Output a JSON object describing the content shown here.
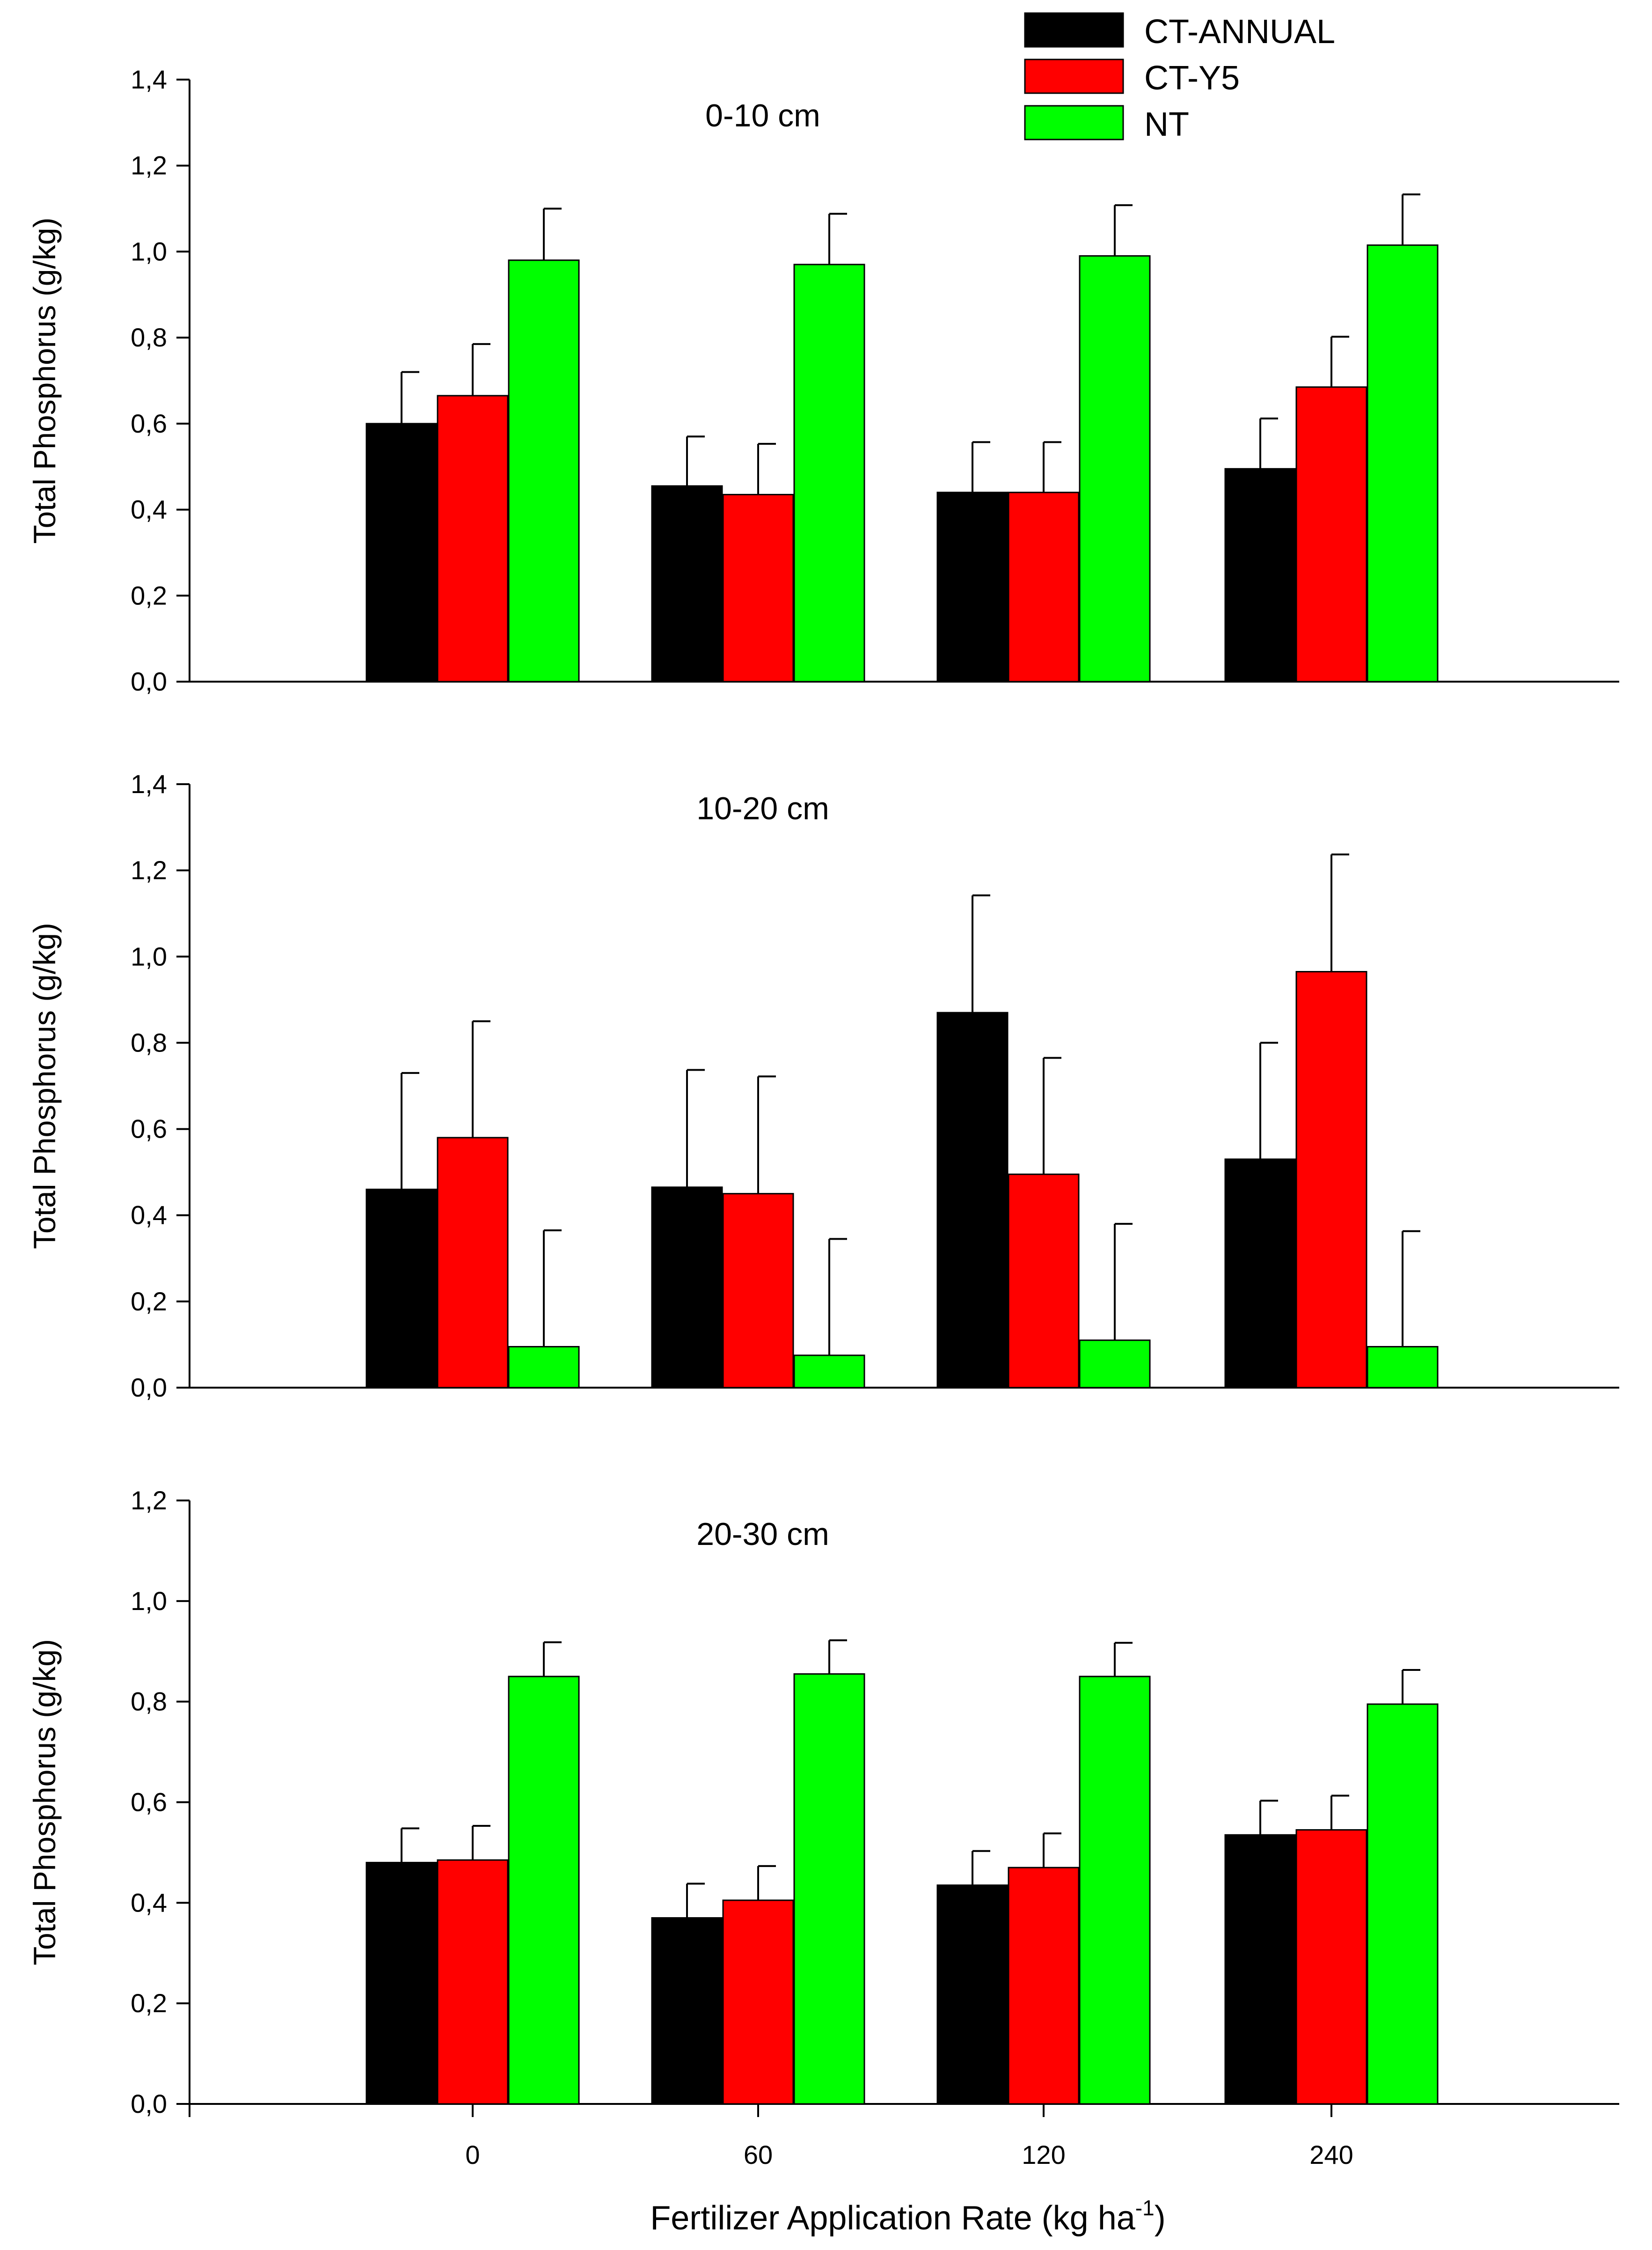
{
  "legend": [
    {
      "name": "CT-ANNUAL",
      "color": "#000000"
    },
    {
      "name": "CT-Y5",
      "color": "#ff0000"
    },
    {
      "name": "NT",
      "color": "#00ff00"
    }
  ],
  "xlabel": {
    "main": "Fertilizer Application Rate (kg ha",
    "sup": "-1",
    "close": ")"
  },
  "chart_data": [
    {
      "type": "bar",
      "title": "0-10 cm",
      "ylabel": "Total Phosphorus (g/kg)",
      "xlabel": "",
      "categories": [
        "0",
        "60",
        "120",
        "240"
      ],
      "ylim": [
        0,
        1.4
      ],
      "yticks": [
        0,
        0.2,
        0.4,
        0.6,
        0.8,
        1.0,
        1.2,
        1.4
      ],
      "ytick_labels": [
        "0,0",
        "0,2",
        "0,4",
        "0,6",
        "0,8",
        "1,0",
        "1,2",
        "1,4"
      ],
      "show_x_tick_labels": false,
      "series": [
        {
          "name": "CT-ANNUAL",
          "values": [
            0.6,
            0.455,
            0.44,
            0.495
          ],
          "errors": [
            0.12,
            0.115,
            0.117,
            0.117
          ]
        },
        {
          "name": "CT-Y5",
          "values": [
            0.665,
            0.435,
            0.44,
            0.685
          ],
          "errors": [
            0.12,
            0.118,
            0.117,
            0.117
          ]
        },
        {
          "name": "NT",
          "values": [
            0.98,
            0.97,
            0.99,
            1.015
          ],
          "errors": [
            0.12,
            0.118,
            0.118,
            0.118
          ]
        }
      ]
    },
    {
      "type": "bar",
      "title": "10-20 cm",
      "ylabel": "Total Phosphorus (g/kg)",
      "xlabel": "",
      "categories": [
        "0",
        "60",
        "120",
        "240"
      ],
      "ylim": [
        0,
        1.4
      ],
      "yticks": [
        0,
        0.2,
        0.4,
        0.6,
        0.8,
        1.0,
        1.2,
        1.4
      ],
      "ytick_labels": [
        "0,0",
        "0,2",
        "0,4",
        "0,6",
        "0,8",
        "1,0",
        "1,2",
        "1,4"
      ],
      "show_x_tick_labels": false,
      "series": [
        {
          "name": "CT-ANNUAL",
          "values": [
            0.46,
            0.465,
            0.87,
            0.53
          ],
          "errors": [
            0.27,
            0.272,
            0.272,
            0.27
          ]
        },
        {
          "name": "CT-Y5",
          "values": [
            0.58,
            0.45,
            0.495,
            0.965
          ],
          "errors": [
            0.27,
            0.272,
            0.27,
            0.272
          ]
        },
        {
          "name": "NT",
          "values": [
            0.095,
            0.075,
            0.11,
            0.095
          ],
          "errors": [
            0.27,
            0.27,
            0.27,
            0.268
          ]
        }
      ]
    },
    {
      "type": "bar",
      "title": "20-30 cm",
      "ylabel": "Total Phosphorus (g/kg)",
      "xlabel": "",
      "categories": [
        "0",
        "60",
        "120",
        "240"
      ],
      "ylim": [
        0,
        1.2
      ],
      "yticks": [
        0,
        0.2,
        0.4,
        0.6,
        0.8,
        1.0,
        1.2
      ],
      "ytick_labels": [
        "0,0",
        "0,2",
        "0,4",
        "0,6",
        "0,8",
        "1,0",
        "1,2"
      ],
      "show_x_tick_labels": true,
      "series": [
        {
          "name": "CT-ANNUAL",
          "values": [
            0.48,
            0.37,
            0.435,
            0.535
          ],
          "errors": [
            0.068,
            0.068,
            0.068,
            0.068
          ]
        },
        {
          "name": "CT-Y5",
          "values": [
            0.485,
            0.405,
            0.47,
            0.545
          ],
          "errors": [
            0.068,
            0.068,
            0.068,
            0.068
          ]
        },
        {
          "name": "NT",
          "values": [
            0.85,
            0.855,
            0.85,
            0.795
          ],
          "errors": [
            0.068,
            0.067,
            0.067,
            0.068
          ]
        }
      ]
    }
  ]
}
